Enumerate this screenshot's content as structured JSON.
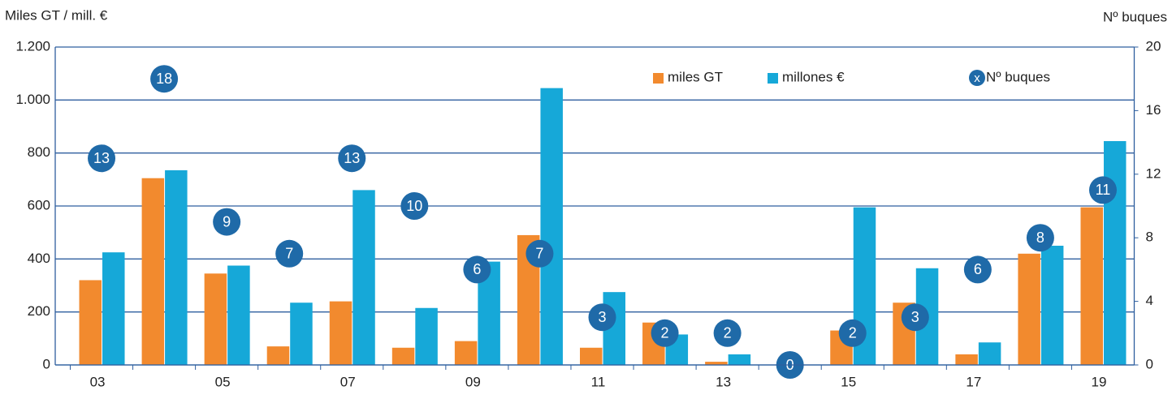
{
  "chart_data": {
    "type": "bar",
    "y_label": "Miles GT / mill. €",
    "y2_label": "Nº buques",
    "legend_marker": "x",
    "categories": [
      "03",
      null,
      "05",
      null,
      "07",
      null,
      "09",
      null,
      "11",
      null,
      "13",
      null,
      "15",
      null,
      "17",
      null,
      "19"
    ],
    "series": [
      {
        "name": "miles GT",
        "color": "#f28a2e",
        "values": [
          320,
          705,
          345,
          70,
          240,
          65,
          90,
          490,
          65,
          160,
          12,
          0,
          130,
          235,
          40,
          420,
          595
        ]
      },
      {
        "name": "millones €",
        "color": "#16a8d8",
        "values": [
          425,
          735,
          375,
          235,
          660,
          215,
          390,
          1045,
          275,
          115,
          40,
          0,
          595,
          365,
          85,
          450,
          845
        ]
      },
      {
        "name": "Nº buques",
        "color": "#1f6aa8",
        "axis": "y2",
        "values": [
          13,
          18,
          9,
          7,
          13,
          10,
          6,
          7,
          3,
          2,
          2,
          0,
          2,
          3,
          6,
          8,
          11
        ]
      }
    ],
    "ylim": [
      0,
      1200
    ],
    "yticks": [
      0,
      200,
      400,
      600,
      800,
      {
        "value": 1000,
        "label": "1.000"
      },
      {
        "value": 1200,
        "label": "1.200"
      }
    ],
    "y2lim": [
      0,
      20
    ],
    "y2ticks": [
      0,
      4,
      8,
      12,
      16,
      20
    ],
    "grid": true
  }
}
